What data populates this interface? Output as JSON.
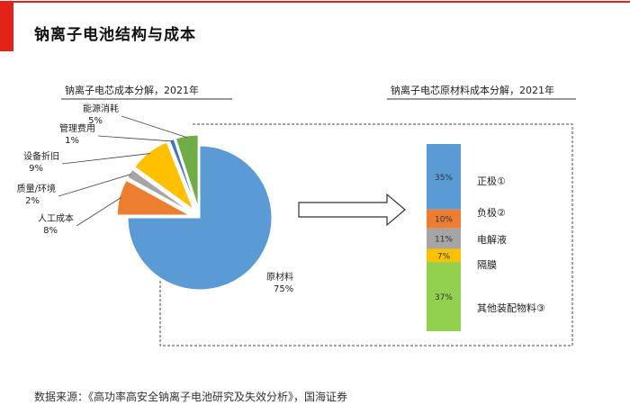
{
  "page": {
    "title": "钠离子电池结构与成本",
    "source": "数据来源：《高功率高安全钠离子电池研究及失效分析》，国海证券"
  },
  "colors": {
    "brand_red": "#e32219",
    "blue": "#5b9bd5",
    "orange": "#ed7d31",
    "gray": "#a5a5a5",
    "gold": "#ffc000",
    "green": "#70ad47",
    "dark_blue": "#4472c4"
  },
  "chart_data": [
    {
      "type": "pie",
      "title": "钠离子电芯成本分解，2021年",
      "slices": [
        {
          "label": "原材料",
          "value": 75,
          "value_label": "75%",
          "color": "#5b9bd5",
          "exploded": false
        },
        {
          "label": "人工成本",
          "value": 8,
          "value_label": "8%",
          "color": "#ed7d31",
          "exploded": true
        },
        {
          "label": "质量/环境",
          "value": 2,
          "value_label": "2%",
          "color": "#a5a5a5",
          "exploded": true
        },
        {
          "label": "设备折旧",
          "value": 9,
          "value_label": "9%",
          "color": "#ffc000",
          "exploded": true
        },
        {
          "label": "管理费用",
          "value": 1,
          "value_label": "1%",
          "color": "#4472c4",
          "exploded": true
        },
        {
          "label": "能源消耗",
          "value": 5,
          "value_label": "5%",
          "color": "#70ad47",
          "exploded": true
        }
      ]
    },
    {
      "type": "bar",
      "subtype": "stacked-100",
      "title": "钠离子电芯原材料成本分解，2021年",
      "segments": [
        {
          "label": "正极①",
          "value": 35,
          "value_label": "35%",
          "color": "#5b9bd5"
        },
        {
          "label": "负极②",
          "value": 10,
          "value_label": "10%",
          "color": "#ed7d31"
        },
        {
          "label": "电解液",
          "value": 11,
          "value_label": "11%",
          "color": "#a5a5a5"
        },
        {
          "label": "隔膜",
          "value": 7,
          "value_label": "7%",
          "color": "#ffc000"
        },
        {
          "label": "其他装配物料③",
          "value": 37,
          "value_label": "37%",
          "color": "#92d050"
        }
      ]
    }
  ]
}
